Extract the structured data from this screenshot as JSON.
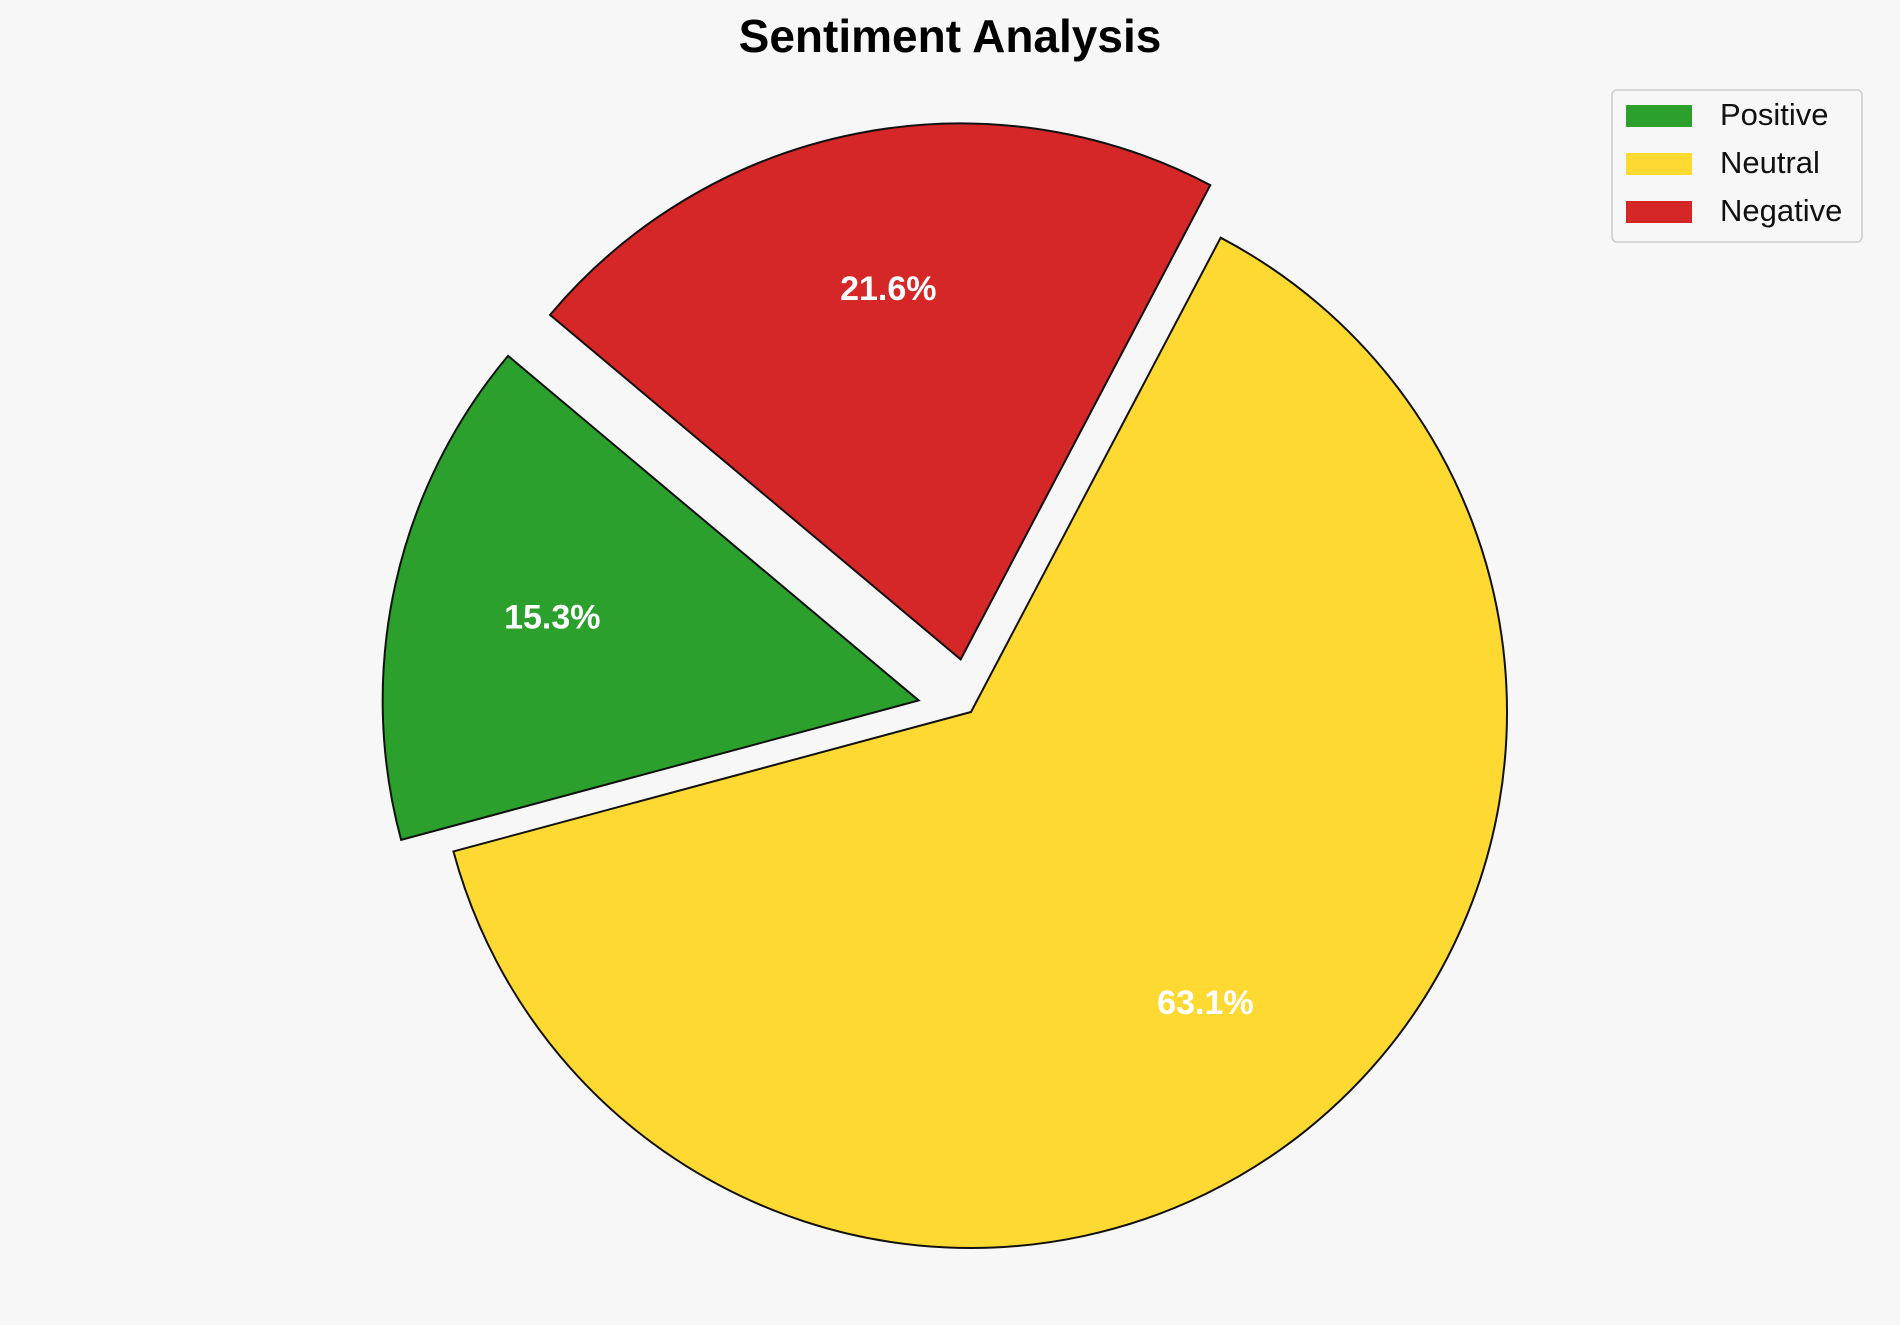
{
  "chart_data": {
    "type": "pie",
    "title": "Sentiment Analysis",
    "categories": [
      "Positive",
      "Neutral",
      "Negative"
    ],
    "values": [
      15.3,
      63.1,
      21.6
    ],
    "value_labels": [
      "15.3%",
      "63.1%",
      "21.6%"
    ],
    "colors": [
      "#2ca02c",
      "#fdd931",
      "#d62728"
    ],
    "explode": [
      0.1,
      0,
      0.1
    ],
    "startangle": 140,
    "legend": "upper right"
  }
}
